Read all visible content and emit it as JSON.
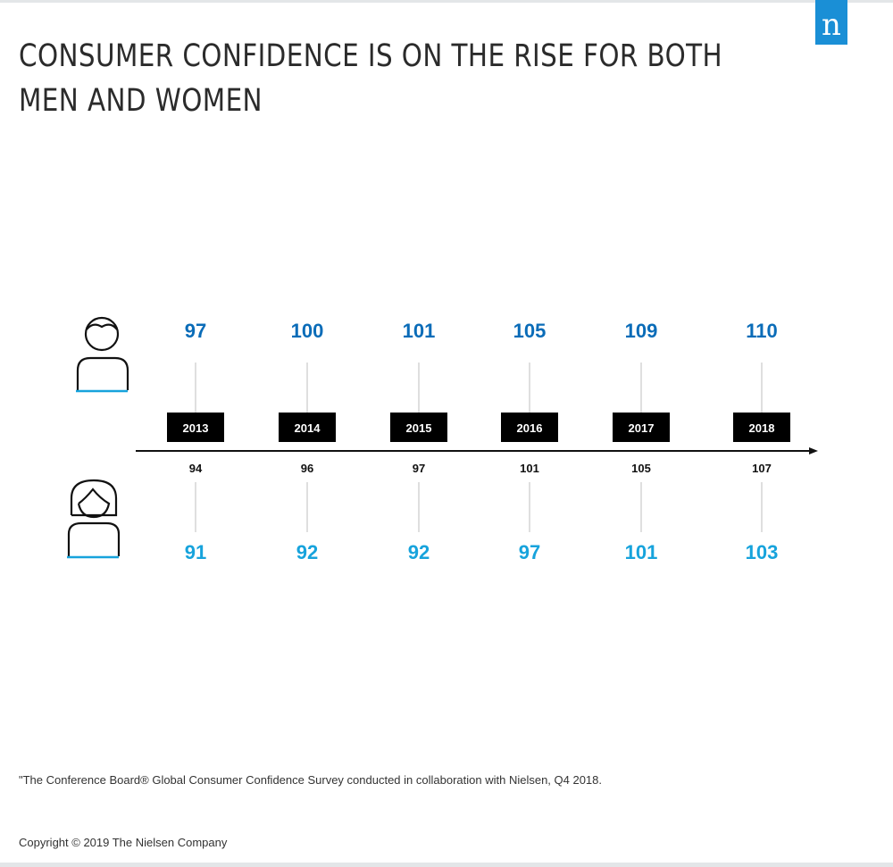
{
  "title_line1": "CONSUMER CONFIDENCE IS ON THE RISE FOR BOTH",
  "title_line2": "MEN AND WOMEN",
  "logo": {
    "letter": "n",
    "color": "#1a8fd6"
  },
  "footnote": "\"The Conference Board® Global Consumer Confidence Survey conducted in collaboration with Nielsen, Q4 2018.",
  "copyright": "Copyright © 2019 The Nielsen Company",
  "icons": {
    "men": "man-icon",
    "women": "woman-icon"
  },
  "colors": {
    "men": "#0a6cb8",
    "women": "#17a3dc",
    "total": "#111111",
    "year_box": "#000000",
    "connector": "#d4d4d4"
  },
  "chart_data": {
    "type": "table",
    "categories": [
      "2013",
      "2014",
      "2015",
      "2016",
      "2017",
      "2018"
    ],
    "series": [
      {
        "values": [
          97,
          100,
          101,
          105,
          109,
          110
        ]
      },
      {
        "values": [
          94,
          96,
          97,
          101,
          105,
          107
        ]
      },
      {
        "values": [
          91,
          92,
          92,
          97,
          101,
          103
        ]
      }
    ]
  }
}
